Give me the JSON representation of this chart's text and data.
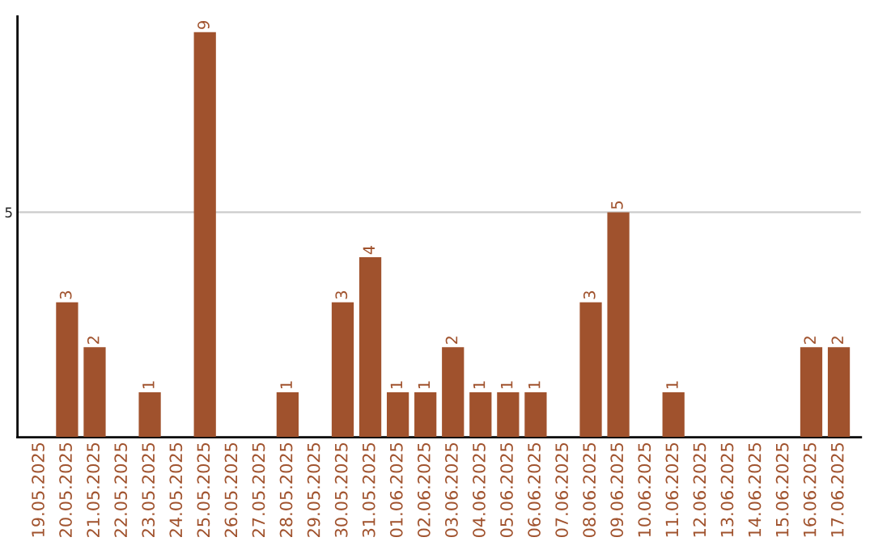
{
  "chart_data": {
    "type": "bar",
    "categories": [
      "19.05.2025",
      "20.05.2025",
      "21.05.2025",
      "22.05.2025",
      "23.05.2025",
      "24.05.2025",
      "25.05.2025",
      "26.05.2025",
      "27.05.2025",
      "28.05.2025",
      "29.05.2025",
      "30.05.2025",
      "31.05.2025",
      "01.06.2025",
      "02.06.2025",
      "03.06.2025",
      "04.06.2025",
      "05.06.2025",
      "06.06.2025",
      "07.06.2025",
      "08.06.2025",
      "09.06.2025",
      "10.06.2025",
      "11.06.2025",
      "12.06.2025",
      "13.06.2025",
      "14.06.2025",
      "15.06.2025",
      "16.06.2025",
      "17.06.2025"
    ],
    "values": [
      0,
      3,
      2,
      0,
      1,
      0,
      9,
      0,
      0,
      1,
      0,
      3,
      4,
      1,
      1,
      2,
      1,
      1,
      1,
      0,
      3,
      5,
      0,
      1,
      0,
      0,
      0,
      0,
      2,
      2
    ],
    "value_labels": [
      null,
      "3",
      "2",
      null,
      "1",
      null,
      "9",
      null,
      null,
      "1",
      null,
      "3",
      "4",
      "1",
      "1",
      "2",
      "1",
      "1",
      "1",
      null,
      "3",
      "5",
      null,
      "1",
      null,
      null,
      null,
      null,
      "2",
      "2"
    ],
    "color": "#a0522d",
    "ylim": [
      0,
      9.35
    ],
    "yticks": [
      5
    ],
    "grid": "y"
  }
}
